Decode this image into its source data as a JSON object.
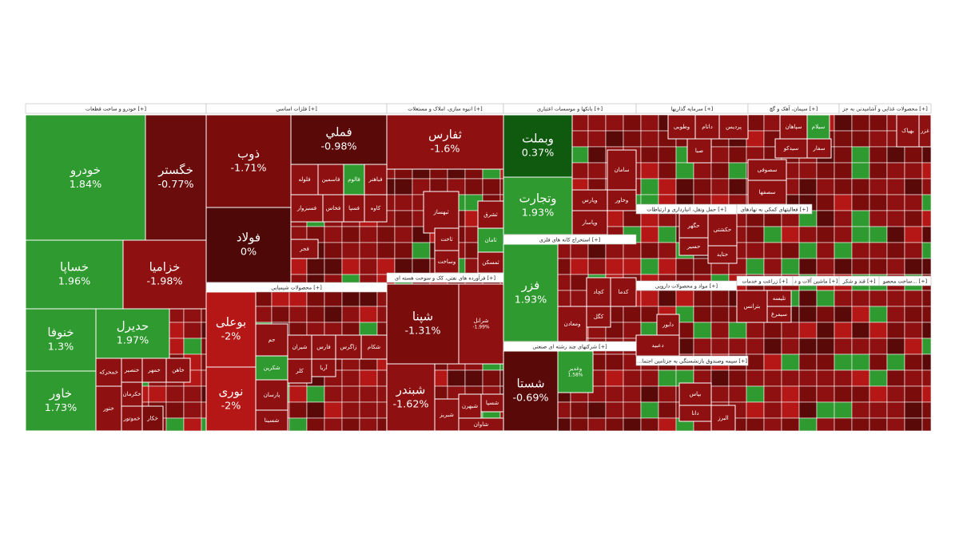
{
  "sectors": [
    {
      "title": "خودرو و ساخت قطعات [+]",
      "tiles": [
        {
          "label": "خودرو",
          "change": "1.84%"
        },
        {
          "label": "خگستر",
          "change": "-0.77%"
        },
        {
          "label": "خساپا",
          "change": "1.96%"
        },
        {
          "label": "خزامیا",
          "change": "-1.98%"
        },
        {
          "label": "خنوفا",
          "change": "1.3%"
        },
        {
          "label": "خاور",
          "change": "1.73%"
        },
        {
          "label": "حدیرل",
          "change": "1.97%"
        },
        {
          "label": "خمحرکه"
        },
        {
          "label": "خنصیر"
        },
        {
          "label": "خمهر"
        },
        {
          "label": "خاهن"
        },
        {
          "label": "خکرمان"
        },
        {
          "label": "خموتور"
        },
        {
          "label": "خکار"
        },
        {
          "label": "ختور"
        }
      ]
    },
    {
      "title": "فلزات اساسی [+]",
      "tiles": [
        {
          "label": "ذوب",
          "change": "-1.71%"
        },
        {
          "label": "فملي",
          "change": "-0.98%"
        },
        {
          "label": "فولاد",
          "change": "0%"
        },
        {
          "label": "فباهنر"
        },
        {
          "label": "فالوم"
        },
        {
          "label": "فاسمین"
        },
        {
          "label": "فلوله"
        },
        {
          "label": "کاوه"
        },
        {
          "label": "فسپا"
        },
        {
          "label": "فخاس"
        },
        {
          "label": "فسبزوار"
        },
        {
          "label": "فجر"
        }
      ]
    },
    {
      "title": "محصولات شیمیایی [+]",
      "tiles": [
        {
          "label": "بوعلی",
          "change": "-2%"
        },
        {
          "label": "نوری",
          "change": "-2%"
        },
        {
          "label": "شیران"
        },
        {
          "label": "فارس"
        },
        {
          "label": "زاگرس"
        },
        {
          "label": "شکام"
        },
        {
          "label": "جم"
        },
        {
          "label": "شکرین"
        },
        {
          "label": "پارسان"
        },
        {
          "label": "شسینا"
        },
        {
          "label": "کلر"
        },
        {
          "label": "آریا"
        }
      ]
    },
    {
      "title": "انبوه سازی، املاک و مستغلات [+]",
      "tiles": [
        {
          "label": "ثفارس",
          "change": "-1.6%"
        },
        {
          "label": "ثبهساز"
        },
        {
          "label": "ثشرق"
        },
        {
          "label": "ثامان"
        },
        {
          "label": "ثاخت"
        },
        {
          "label": "وساخت"
        },
        {
          "label": "ثمسکن"
        }
      ]
    },
    {
      "title": "فرآورده های نفتی، کک و سوخت هسته ای [+]",
      "tiles": [
        {
          "label": "شپنا",
          "change": "-1.31%"
        },
        {
          "label": "شبندر",
          "change": "-1.62%"
        },
        {
          "label": "شرانل",
          "change": "-1.99%"
        },
        {
          "label": "شبهرن"
        },
        {
          "label": "شبریز"
        },
        {
          "label": "شسپا"
        },
        {
          "label": "شاوان"
        }
      ]
    },
    {
      "title": "بانکها و موسسات اعتباری [+]",
      "tiles": [
        {
          "label": "وبملت",
          "change": "0.37%"
        },
        {
          "label": "وتجارت",
          "change": "1.93%"
        },
        {
          "label": "سامان"
        },
        {
          "label": "وپارس"
        },
        {
          "label": "وخاور"
        },
        {
          "label": "وپاسار"
        }
      ]
    },
    {
      "title": "استخراج کانه های فلزی [+]",
      "tiles": [
        {
          "label": "فزر",
          "change": "1.93%"
        },
        {
          "label": "کچاد"
        },
        {
          "label": "کدما"
        },
        {
          "label": "کگل"
        },
        {
          "label": "ومعادن"
        }
      ]
    },
    {
      "title": "شرکتهای چند رشته ای صنعتی [+]",
      "tiles": [
        {
          "label": "شستا",
          "change": "-0.69%"
        },
        {
          "label": "وغدیر",
          "change": "1.58%"
        }
      ]
    },
    {
      "title": "سرمایه گذاریها [+]",
      "tiles": [
        {
          "label": "پردیس"
        },
        {
          "label": "داتام"
        },
        {
          "label": "وطوبی"
        },
        {
          "label": "صبا"
        }
      ]
    },
    {
      "title": "حمل ونقل، انبارداری و ارتباطات [+]",
      "tiles": [
        {
          "label": "حکشتی"
        },
        {
          "label": "حگهر"
        },
        {
          "label": "حسیر"
        },
        {
          "label": "حتاید"
        }
      ]
    },
    {
      "title": "مواد و محصولات دارویی [+]",
      "tiles": [
        {
          "label": "دابور"
        },
        {
          "label": "دعبید"
        }
      ]
    },
    {
      "title": "...سیمه وصندوق بازنشستگی به جزتامین اجتما [+]",
      "tiles": [
        {
          "label": "بپاس"
        },
        {
          "label": "دانا"
        },
        {
          "label": "البرز"
        }
      ]
    },
    {
      "title": "سیمان، آهک و گچ [+]",
      "tiles": [
        {
          "label": "سپاهان"
        },
        {
          "label": "سیلام"
        },
        {
          "label": "سفار"
        },
        {
          "label": "سیدکو"
        },
        {
          "label": "سصوفی"
        },
        {
          "label": "سصفها"
        }
      ]
    },
    {
      "title": "محصولات غذایی و آشامیدنی به جز [+]",
      "tiles": [
        {
          "label": "بهپاک"
        },
        {
          "label": "غزر"
        }
      ]
    },
    {
      "title": "فعالیتهای کمکی به نهادهای [+]"
    },
    {
      "title": "زراعت و خدمات [+]",
      "tiles": [
        {
          "label": "بترانس"
        },
        {
          "label": "تلیسه"
        },
        {
          "label": "سیمرغ"
        }
      ]
    },
    {
      "title": "ماشین آلات و د [+]"
    },
    {
      "title": "قند و شکر [+]"
    },
    {
      "title": "ساخت محصو... [+]"
    }
  ]
}
